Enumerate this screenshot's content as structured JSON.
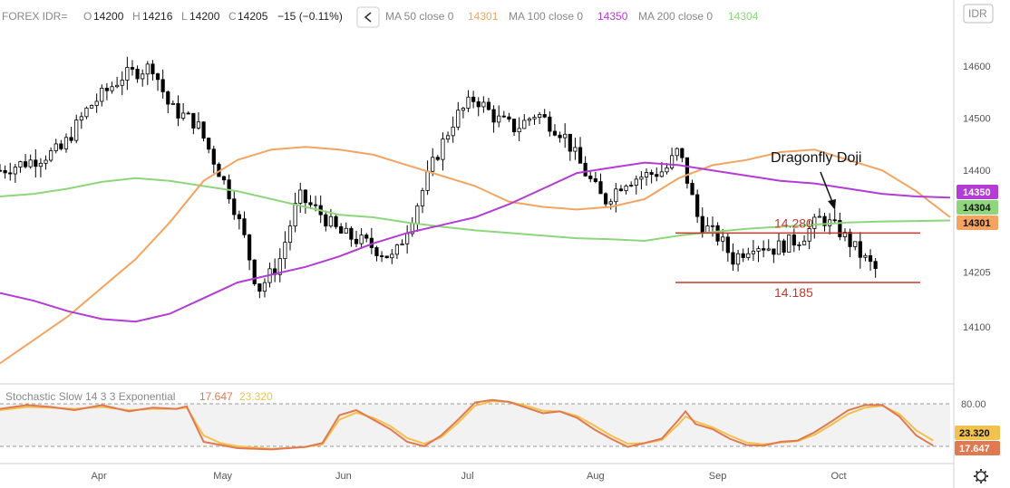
{
  "header": {
    "symbol": "FOREX IDR=",
    "o_label": "O",
    "o_value": "14200",
    "h_label": "H",
    "h_value": "14216",
    "l_label": "L",
    "l_value": "14200",
    "c_label": "C",
    "c_value": "14205",
    "change": "−15 (−0.11%)",
    "ma50_label": "MA 50 close 0",
    "ma50_value": "14301",
    "ma100_label": "MA 100 close 0",
    "ma100_value": "14350",
    "ma200_label": "MA 200 close 0",
    "ma200_value": "14304",
    "currency_button": "IDR"
  },
  "colors": {
    "ma50": "#f4a460",
    "ma100": "#b23cd4",
    "ma200": "#8ed67c",
    "stoch_k": "#e0794f",
    "stoch_d": "#f2c14e",
    "level_line": "#c0392b"
  },
  "icons": {
    "collapse": "chevron-left-icon",
    "settings": "gear-icon"
  },
  "chart_data": [
    {
      "type": "candlestick",
      "x_ticks": [
        "Apr",
        "May",
        "Jun",
        "Jul",
        "Aug",
        "Sep",
        "Oct"
      ],
      "y_ticks": [
        14100,
        14205,
        14300,
        14400,
        14500,
        14600
      ],
      "ylim": [
        14040,
        14660
      ],
      "annotations": {
        "resistance": {
          "label": "14.280",
          "value": 14280
        },
        "support": {
          "label": "14.185",
          "value": 14185
        },
        "pattern": "Dragonfly Doji"
      },
      "price_tags": [
        {
          "value": "14350",
          "series": "ma100"
        },
        {
          "value": "14304",
          "series": "ma200"
        },
        {
          "value": "14301",
          "series": "ma50"
        }
      ],
      "ma50": [
        [
          0,
          14030
        ],
        [
          10,
          14075
        ],
        [
          20,
          14120
        ],
        [
          30,
          14175
        ],
        [
          40,
          14230
        ],
        [
          50,
          14300
        ],
        [
          60,
          14380
        ],
        [
          70,
          14420
        ],
        [
          80,
          14440
        ],
        [
          90,
          14445
        ],
        [
          100,
          14440
        ],
        [
          110,
          14430
        ],
        [
          120,
          14410
        ],
        [
          130,
          14390
        ],
        [
          140,
          14370
        ],
        [
          150,
          14340
        ],
        [
          160,
          14330
        ],
        [
          170,
          14325
        ],
        [
          180,
          14330
        ],
        [
          190,
          14345
        ],
        [
          200,
          14385
        ],
        [
          210,
          14410
        ],
        [
          220,
          14420
        ],
        [
          230,
          14435
        ],
        [
          240,
          14440
        ],
        [
          250,
          14420
        ],
        [
          260,
          14400
        ],
        [
          270,
          14360
        ],
        [
          280,
          14310
        ]
      ],
      "ma100": [
        [
          0,
          14165
        ],
        [
          10,
          14150
        ],
        [
          20,
          14130
        ],
        [
          30,
          14115
        ],
        [
          40,
          14110
        ],
        [
          50,
          14125
        ],
        [
          60,
          14155
        ],
        [
          70,
          14185
        ],
        [
          80,
          14200
        ],
        [
          90,
          14215
        ],
        [
          100,
          14235
        ],
        [
          110,
          14260
        ],
        [
          120,
          14280
        ],
        [
          130,
          14295
        ],
        [
          140,
          14310
        ],
        [
          150,
          14335
        ],
        [
          160,
          14365
        ],
        [
          170,
          14395
        ],
        [
          180,
          14405
        ],
        [
          190,
          14415
        ],
        [
          200,
          14410
        ],
        [
          210,
          14400
        ],
        [
          220,
          14390
        ],
        [
          230,
          14380
        ],
        [
          240,
          14375
        ],
        [
          250,
          14365
        ],
        [
          260,
          14355
        ],
        [
          270,
          14350
        ],
        [
          280,
          14348
        ]
      ],
      "ma200": [
        [
          0,
          14350
        ],
        [
          10,
          14355
        ],
        [
          20,
          14365
        ],
        [
          30,
          14378
        ],
        [
          40,
          14385
        ],
        [
          50,
          14380
        ],
        [
          60,
          14370
        ],
        [
          70,
          14360
        ],
        [
          80,
          14345
        ],
        [
          90,
          14330
        ],
        [
          100,
          14315
        ],
        [
          110,
          14310
        ],
        [
          120,
          14300
        ],
        [
          130,
          14292
        ],
        [
          140,
          14285
        ],
        [
          150,
          14280
        ],
        [
          160,
          14275
        ],
        [
          170,
          14270
        ],
        [
          180,
          14268
        ],
        [
          190,
          14265
        ],
        [
          200,
          14275
        ],
        [
          210,
          14282
        ],
        [
          220,
          14288
        ],
        [
          230,
          14292
        ],
        [
          240,
          14296
        ],
        [
          250,
          14300
        ],
        [
          260,
          14302
        ],
        [
          270,
          14303
        ],
        [
          280,
          14304
        ]
      ]
    },
    {
      "type": "line",
      "title": "Stochastic Slow 14 3 3 Exponential",
      "k_value": "17.647",
      "d_value": "23.320",
      "y_ticks": [
        80.0
      ],
      "ylim": [
        0,
        100
      ],
      "levels": [
        80,
        20
      ],
      "k": [
        [
          0,
          72
        ],
        [
          8,
          78
        ],
        [
          15,
          75
        ],
        [
          22,
          70
        ],
        [
          30,
          78
        ],
        [
          38,
          68
        ],
        [
          45,
          74
        ],
        [
          52,
          72
        ],
        [
          55,
          76
        ],
        [
          60,
          20
        ],
        [
          65,
          15
        ],
        [
          70,
          10
        ],
        [
          80,
          8
        ],
        [
          90,
          12
        ],
        [
          95,
          18
        ],
        [
          100,
          62
        ],
        [
          105,
          70
        ],
        [
          110,
          55
        ],
        [
          115,
          40
        ],
        [
          120,
          20
        ],
        [
          125,
          13
        ],
        [
          130,
          30
        ],
        [
          135,
          55
        ],
        [
          140,
          82
        ],
        [
          145,
          86
        ],
        [
          150,
          83
        ],
        [
          155,
          74
        ],
        [
          160,
          65
        ],
        [
          165,
          68
        ],
        [
          170,
          58
        ],
        [
          175,
          40
        ],
        [
          180,
          25
        ],
        [
          185,
          12
        ],
        [
          190,
          18
        ],
        [
          195,
          25
        ],
        [
          200,
          55
        ],
        [
          202,
          68
        ],
        [
          205,
          48
        ],
        [
          210,
          40
        ],
        [
          215,
          25
        ],
        [
          220,
          15
        ],
        [
          225,
          14
        ],
        [
          230,
          20
        ],
        [
          235,
          22
        ],
        [
          240,
          35
        ],
        [
          245,
          52
        ],
        [
          250,
          70
        ],
        [
          255,
          78
        ],
        [
          260,
          78
        ],
        [
          265,
          60
        ],
        [
          270,
          30
        ],
        [
          275,
          14
        ]
      ],
      "d": [
        [
          0,
          70
        ],
        [
          8,
          75
        ],
        [
          15,
          74
        ],
        [
          22,
          72
        ],
        [
          30,
          75
        ],
        [
          38,
          70
        ],
        [
          45,
          72
        ],
        [
          52,
          72
        ],
        [
          55,
          74
        ],
        [
          60,
          30
        ],
        [
          65,
          18
        ],
        [
          70,
          13
        ],
        [
          80,
          9
        ],
        [
          90,
          12
        ],
        [
          95,
          16
        ],
        [
          100,
          55
        ],
        [
          105,
          66
        ],
        [
          110,
          58
        ],
        [
          115,
          45
        ],
        [
          120,
          26
        ],
        [
          125,
          17
        ],
        [
          130,
          27
        ],
        [
          135,
          50
        ],
        [
          140,
          77
        ],
        [
          145,
          84
        ],
        [
          150,
          83
        ],
        [
          155,
          77
        ],
        [
          160,
          69
        ],
        [
          165,
          68
        ],
        [
          170,
          61
        ],
        [
          175,
          46
        ],
        [
          180,
          30
        ],
        [
          185,
          17
        ],
        [
          190,
          18
        ],
        [
          195,
          23
        ],
        [
          200,
          48
        ],
        [
          202,
          60
        ],
        [
          205,
          52
        ],
        [
          210,
          43
        ],
        [
          215,
          30
        ],
        [
          220,
          19
        ],
        [
          225,
          16
        ],
        [
          230,
          19
        ],
        [
          235,
          21
        ],
        [
          240,
          31
        ],
        [
          245,
          47
        ],
        [
          250,
          64
        ],
        [
          255,
          74
        ],
        [
          260,
          77
        ],
        [
          265,
          64
        ],
        [
          270,
          38
        ],
        [
          275,
          22
        ]
      ]
    }
  ]
}
